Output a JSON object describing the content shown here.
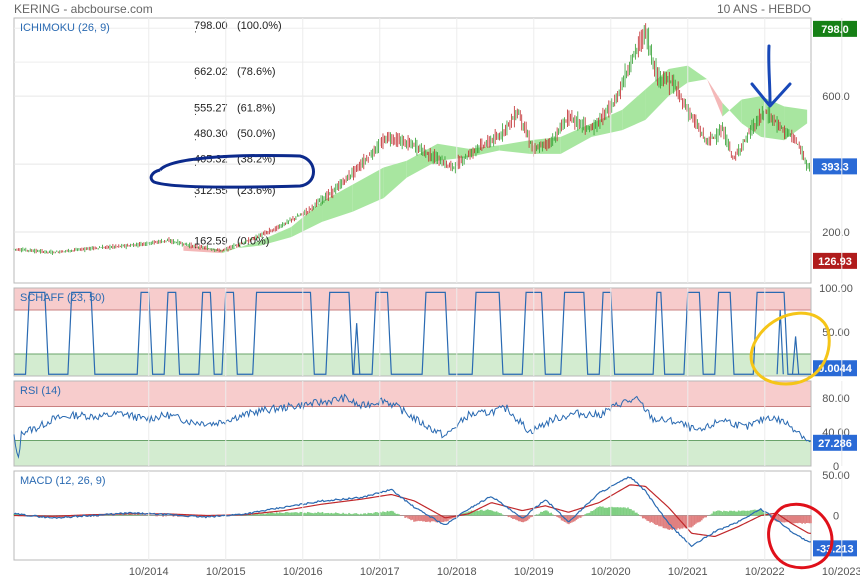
{
  "header": {
    "left": "KERING - abcbourse.com",
    "right": "10 ANS - HEBDO"
  },
  "colors": {
    "candle_up": "#2e9e2e",
    "candle_down": "#c0282b",
    "cloud_green": "#a8e6a0",
    "cloud_red": "#f4b8b8",
    "indicator_line": "#2a6ab2",
    "zone_red": "#f7cccc",
    "zone_green": "#d3ecd0",
    "macd_line": "#2a6ab2",
    "signal_line": "#c0282b",
    "hist_pos": "#7fcf82",
    "hist_neg": "#e08080",
    "label_green": "#168016",
    "label_blue": "#2a6ad6",
    "label_red": "#b01c1c",
    "annot_blue": "#1848b8",
    "annot_navy": "#0c2a8c",
    "annot_yellow": "#f5c518",
    "annot_red": "#e0101a"
  },
  "chart_data": [
    {
      "type": "candlestick",
      "title": "ICHIMOKU (26, 9)",
      "ylim": [
        50,
        830
      ],
      "yticks": [
        "600.0",
        "200.0"
      ],
      "price_labels": {
        "high": "798.0",
        "last": "393.3",
        "low": "126.93"
      },
      "fib_levels": [
        {
          "value": 798.0,
          "label": "798.00",
          "pct": "(100.0%)"
        },
        {
          "value": 662.02,
          "label": "662.02",
          "pct": "(78.6%)"
        },
        {
          "value": 555.27,
          "label": "555.27",
          "pct": "(61.8%)"
        },
        {
          "value": 480.3,
          "label": "480.30",
          "pct": "(50.0%)"
        },
        {
          "value": 405.32,
          "label": "405.32",
          "pct": "(38.2%)"
        },
        {
          "value": 312.55,
          "label": "312.55",
          "pct": "(23.6%)"
        },
        {
          "value": 162.59,
          "label": "162.59",
          "pct": "(0.0%)"
        }
      ],
      "price_path": [
        [
          2013.0,
          150
        ],
        [
          2013.5,
          140
        ],
        [
          2014.0,
          152
        ],
        [
          2014.5,
          160
        ],
        [
          2015.0,
          175
        ],
        [
          2015.3,
          160
        ],
        [
          2015.7,
          145
        ],
        [
          2016.0,
          170
        ],
        [
          2016.4,
          210
        ],
        [
          2016.8,
          260
        ],
        [
          2017.2,
          330
        ],
        [
          2017.6,
          420
        ],
        [
          2017.85,
          480
        ],
        [
          2018.2,
          455
        ],
        [
          2018.45,
          420
        ],
        [
          2018.7,
          390
        ],
        [
          2019.0,
          445
        ],
        [
          2019.3,
          480
        ],
        [
          2019.55,
          555
        ],
        [
          2019.75,
          440
        ],
        [
          2020.0,
          470
        ],
        [
          2020.2,
          540
        ],
        [
          2020.5,
          500
        ],
        [
          2020.8,
          580
        ],
        [
          2021.05,
          720
        ],
        [
          2021.2,
          790
        ],
        [
          2021.35,
          660
        ],
        [
          2021.55,
          640
        ],
        [
          2021.75,
          560
        ],
        [
          2022.0,
          465
        ],
        [
          2022.2,
          500
        ],
        [
          2022.35,
          415
        ],
        [
          2022.55,
          490
        ],
        [
          2022.75,
          555
        ],
        [
          2022.95,
          510
        ],
        [
          2023.15,
          470
        ],
        [
          2023.32,
          393.3
        ]
      ],
      "cloud": [
        [
          2015.2,
          160,
          145
        ],
        [
          2015.7,
          148,
          138
        ],
        [
          2016.2,
          160,
          175
        ],
        [
          2016.6,
          185,
          215
        ],
        [
          2017.0,
          230,
          290
        ],
        [
          2017.4,
          260,
          340
        ],
        [
          2017.8,
          300,
          390
        ],
        [
          2018.1,
          360,
          410
        ],
        [
          2018.5,
          410,
          460
        ],
        [
          2018.9,
          420,
          445
        ],
        [
          2019.3,
          440,
          455
        ],
        [
          2019.7,
          430,
          470
        ],
        [
          2020.1,
          430,
          480
        ],
        [
          2020.5,
          480,
          520
        ],
        [
          2020.9,
          500,
          560
        ],
        [
          2021.2,
          530,
          620
        ],
        [
          2021.5,
          600,
          680
        ],
        [
          2021.75,
          640,
          690
        ],
        [
          2022.0,
          650,
          650
        ],
        [
          2022.2,
          580,
          540
        ],
        [
          2022.45,
          520,
          590
        ],
        [
          2022.7,
          480,
          600
        ],
        [
          2023.0,
          470,
          570
        ],
        [
          2023.3,
          520,
          560
        ]
      ]
    },
    {
      "type": "line",
      "title": "SCHAFF (23, 50)",
      "ylim": [
        0,
        100
      ],
      "yticks": [
        "100.00",
        "50.00"
      ],
      "zones": {
        "upper": 75,
        "lower": 25
      },
      "last_label": "0.0044",
      "cycles": [
        [
          2013.15,
          2013.45
        ],
        [
          2013.7,
          2014.05
        ],
        [
          2014.6,
          2014.8
        ],
        [
          2014.95,
          2015.15
        ],
        [
          2015.4,
          2015.6
        ],
        [
          2015.7,
          2015.9
        ],
        [
          2016.1,
          2016.9
        ],
        [
          2017.05,
          2017.4
        ],
        [
          2017.65,
          2017.9
        ],
        [
          2018.3,
          2018.65
        ],
        [
          2018.95,
          2019.35
        ],
        [
          2019.6,
          2019.9
        ],
        [
          2020.1,
          2020.45
        ],
        [
          2020.6,
          2020.8
        ],
        [
          2021.3,
          2021.45
        ],
        [
          2021.7,
          2021.95
        ],
        [
          2022.1,
          2022.35
        ],
        [
          2022.6,
          2023.05
        ]
      ],
      "spikes": [
        [
          2017.45,
          60
        ],
        [
          2022.95,
          75
        ],
        [
          2023.15,
          45
        ]
      ]
    },
    {
      "type": "line",
      "title": "RSI (14)",
      "ylim": [
        0,
        100
      ],
      "yticks": [
        "80.00",
        "40.00",
        "0"
      ],
      "zones": {
        "upper": 70,
        "lower": 30
      },
      "last_label": "27.286",
      "points": [
        [
          2013.0,
          35
        ],
        [
          2013.05,
          5
        ],
        [
          2013.1,
          40
        ],
        [
          2013.3,
          45
        ],
        [
          2013.5,
          55
        ],
        [
          2013.8,
          60
        ],
        [
          2014.1,
          58
        ],
        [
          2014.4,
          62
        ],
        [
          2014.7,
          55
        ],
        [
          2015.0,
          60
        ],
        [
          2015.3,
          52
        ],
        [
          2015.6,
          50
        ],
        [
          2015.9,
          58
        ],
        [
          2016.2,
          65
        ],
        [
          2016.6,
          70
        ],
        [
          2017.0,
          75
        ],
        [
          2017.3,
          80
        ],
        [
          2017.5,
          70
        ],
        [
          2017.8,
          78
        ],
        [
          2018.0,
          68
        ],
        [
          2018.3,
          50
        ],
        [
          2018.6,
          35
        ],
        [
          2018.9,
          60
        ],
        [
          2019.1,
          62
        ],
        [
          2019.4,
          68
        ],
        [
          2019.7,
          40
        ],
        [
          2020.0,
          55
        ],
        [
          2020.3,
          62
        ],
        [
          2020.6,
          60
        ],
        [
          2020.9,
          75
        ],
        [
          2021.1,
          78
        ],
        [
          2021.3,
          55
        ],
        [
          2021.6,
          52
        ],
        [
          2021.9,
          40
        ],
        [
          2022.2,
          55
        ],
        [
          2022.5,
          45
        ],
        [
          2022.8,
          58
        ],
        [
          2023.0,
          52
        ],
        [
          2023.2,
          40
        ],
        [
          2023.33,
          27.3
        ]
      ]
    },
    {
      "type": "line",
      "title": "MACD (12, 26, 9)",
      "ylim": [
        -55,
        55
      ],
      "yticks": [
        "50.00",
        "0"
      ],
      "last_label": "-33.213",
      "macd": [
        [
          2013.0,
          2
        ],
        [
          2013.5,
          -3
        ],
        [
          2014.0,
          0
        ],
        [
          2014.5,
          3
        ],
        [
          2015.0,
          1
        ],
        [
          2015.5,
          -2
        ],
        [
          2016.0,
          2
        ],
        [
          2016.5,
          10
        ],
        [
          2017.0,
          18
        ],
        [
          2017.5,
          22
        ],
        [
          2017.9,
          32
        ],
        [
          2018.2,
          10
        ],
        [
          2018.6,
          -12
        ],
        [
          2018.9,
          8
        ],
        [
          2019.2,
          24
        ],
        [
          2019.6,
          -4
        ],
        [
          2019.9,
          20
        ],
        [
          2020.2,
          -8
        ],
        [
          2020.6,
          28
        ],
        [
          2021.0,
          48
        ],
        [
          2021.2,
          30
        ],
        [
          2021.5,
          -10
        ],
        [
          2021.8,
          -38
        ],
        [
          2022.1,
          -20
        ],
        [
          2022.4,
          -8
        ],
        [
          2022.7,
          8
        ],
        [
          2022.9,
          -5
        ],
        [
          2023.1,
          -20
        ],
        [
          2023.32,
          -33.2
        ]
      ],
      "signal": [
        [
          2013.0,
          0
        ],
        [
          2013.5,
          -1
        ],
        [
          2014.0,
          1
        ],
        [
          2014.5,
          2
        ],
        [
          2015.0,
          2
        ],
        [
          2015.5,
          0
        ],
        [
          2016.0,
          1
        ],
        [
          2016.5,
          6
        ],
        [
          2017.0,
          14
        ],
        [
          2017.5,
          20
        ],
        [
          2017.9,
          26
        ],
        [
          2018.2,
          18
        ],
        [
          2018.6,
          -3
        ],
        [
          2018.9,
          2
        ],
        [
          2019.2,
          16
        ],
        [
          2019.6,
          6
        ],
        [
          2019.9,
          12
        ],
        [
          2020.2,
          4
        ],
        [
          2020.6,
          16
        ],
        [
          2021.0,
          38
        ],
        [
          2021.2,
          36
        ],
        [
          2021.5,
          10
        ],
        [
          2021.8,
          -22
        ],
        [
          2022.1,
          -26
        ],
        [
          2022.4,
          -14
        ],
        [
          2022.7,
          0
        ],
        [
          2022.9,
          3
        ],
        [
          2023.1,
          -10
        ],
        [
          2023.32,
          -22
        ]
      ]
    }
  ],
  "x_axis": {
    "ticks": [
      {
        "t": 2014.75,
        "label": "10/2014"
      },
      {
        "t": 2015.75,
        "label": "10/2015"
      },
      {
        "t": 2016.75,
        "label": "10/2016"
      },
      {
        "t": 2017.75,
        "label": "10/2017"
      },
      {
        "t": 2018.75,
        "label": "10/2018"
      },
      {
        "t": 2019.75,
        "label": "10/2019"
      },
      {
        "t": 2020.75,
        "label": "10/2020"
      },
      {
        "t": 2021.75,
        "label": "10/2021"
      },
      {
        "t": 2022.75,
        "label": "10/2022"
      },
      {
        "t": 2023.75,
        "label": "10/2023"
      }
    ],
    "start": 2013.0,
    "end": 2023.35
  },
  "annotations": [
    {
      "kind": "arrow-down",
      "color": "annot_blue",
      "name": "blue-arrow-annotation"
    },
    {
      "kind": "ellipse",
      "color": "annot_navy",
      "name": "fib-38-circle-annotation"
    },
    {
      "kind": "ellipse",
      "color": "annot_yellow",
      "name": "schaff-circle-annotation"
    },
    {
      "kind": "ellipse",
      "color": "annot_red",
      "name": "macd-circle-annotation"
    }
  ]
}
